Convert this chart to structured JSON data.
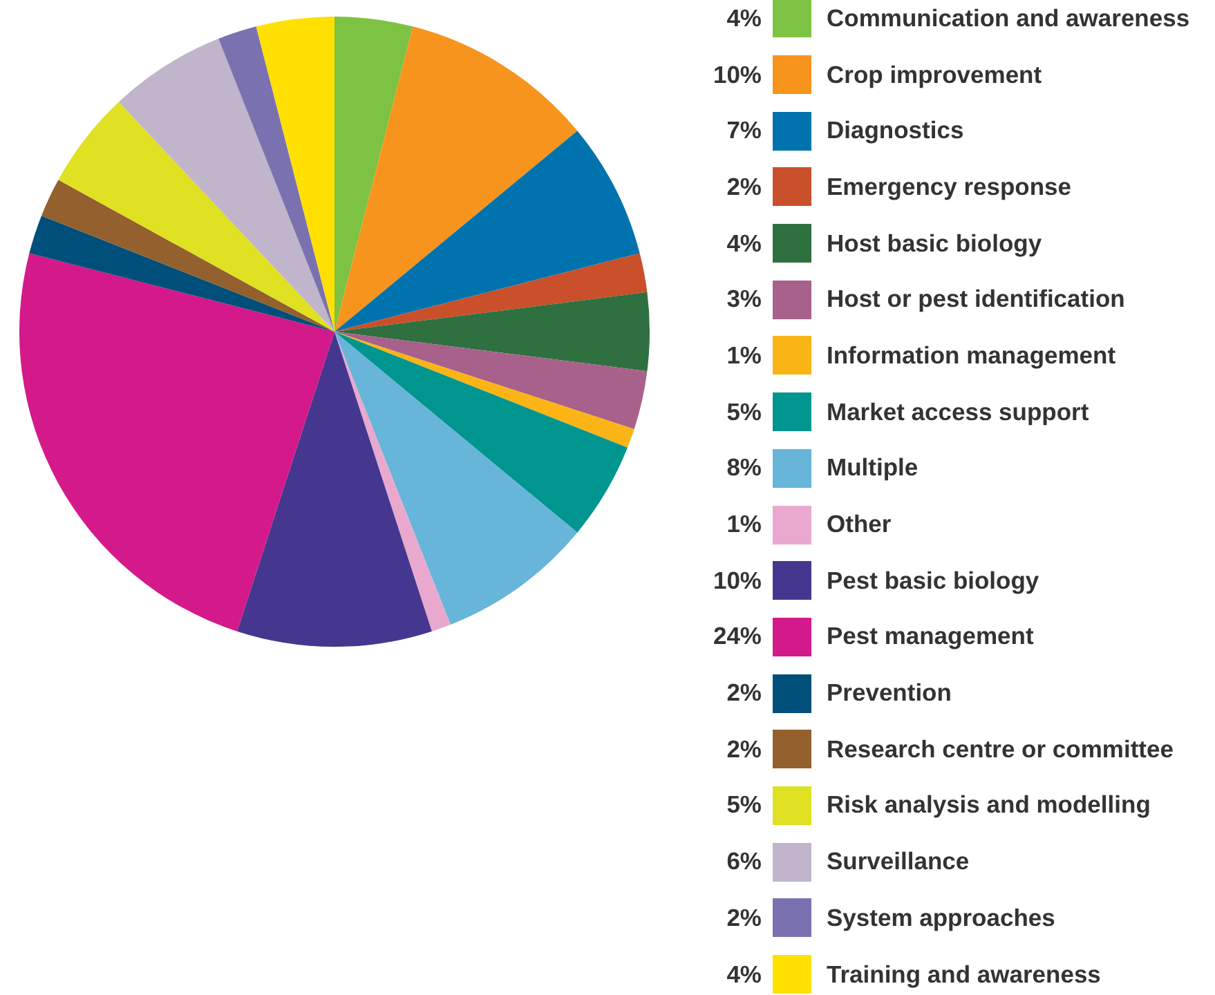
{
  "chart_data": {
    "type": "pie",
    "legend": "right",
    "categories": [
      "Communication and awareness",
      "Crop improvement",
      "Diagnostics",
      "Emergency response",
      "Host basic biology",
      "Host or pest identification",
      "Information management",
      "Market access support",
      "Multiple",
      "Other",
      "Pest basic biology",
      "Pest management",
      "Prevention",
      "Research centre or committee",
      "Risk analysis and modelling",
      "Surveillance",
      "System approaches",
      "Training and awareness"
    ],
    "values": [
      4,
      10,
      7,
      2,
      4,
      3,
      1,
      5,
      8,
      1,
      10,
      24,
      2,
      2,
      5,
      6,
      2,
      4
    ],
    "value_labels": [
      "4%",
      "10%",
      "7%",
      "2%",
      "4%",
      "3%",
      "1%",
      "5%",
      "8%",
      "1%",
      "10%",
      "24%",
      "2%",
      "2%",
      "5%",
      "6%",
      "2%",
      "4%"
    ],
    "colors": [
      "#7dc242",
      "#f7941d",
      "#0073ae",
      "#c9502a",
      "#2e7040",
      "#a8618a",
      "#fbb415",
      "#00958f",
      "#67b5d8",
      "#e9a9cf",
      "#45378f",
      "#d4198a",
      "#004f7a",
      "#93602e",
      "#dfe122",
      "#c0b5ca",
      "#7a72b0",
      "#ffe000"
    ]
  }
}
